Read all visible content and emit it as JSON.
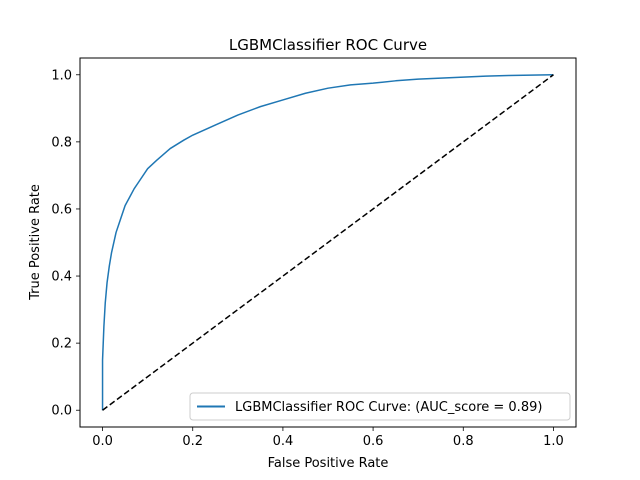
{
  "chart_data": {
    "type": "line",
    "title": "LGBMClassifier ROC Curve",
    "xlabel": "False Positive Rate",
    "ylabel": "True Positive Rate",
    "xlim": [
      -0.05,
      1.05
    ],
    "ylim": [
      -0.05,
      1.05
    ],
    "xticks": [
      0.0,
      0.2,
      0.4,
      0.6,
      0.8,
      1.0
    ],
    "yticks": [
      0.0,
      0.2,
      0.4,
      0.6,
      0.8,
      1.0
    ],
    "xtick_labels": [
      "0.0",
      "0.2",
      "0.4",
      "0.6",
      "0.8",
      "1.0"
    ],
    "ytick_labels": [
      "0.0",
      "0.2",
      "0.4",
      "0.6",
      "0.8",
      "1.0"
    ],
    "grid": false,
    "legend_position": "lower-right",
    "series": [
      {
        "name": "LGBMClassifier ROC Curve: (AUC_score = 0.89)",
        "color": "#1f77b4",
        "style": "solid",
        "x": [
          0.0,
          0.0,
          0.003,
          0.006,
          0.01,
          0.015,
          0.02,
          0.03,
          0.04,
          0.05,
          0.06,
          0.07,
          0.08,
          0.1,
          0.12,
          0.15,
          0.18,
          0.2,
          0.25,
          0.3,
          0.35,
          0.4,
          0.45,
          0.5,
          0.55,
          0.6,
          0.65,
          0.7,
          0.75,
          0.8,
          0.85,
          0.9,
          0.95,
          1.0
        ],
        "y": [
          0.0,
          0.15,
          0.25,
          0.32,
          0.38,
          0.43,
          0.47,
          0.53,
          0.57,
          0.61,
          0.635,
          0.66,
          0.68,
          0.72,
          0.745,
          0.78,
          0.805,
          0.82,
          0.85,
          0.88,
          0.905,
          0.925,
          0.945,
          0.96,
          0.97,
          0.975,
          0.982,
          0.987,
          0.99,
          0.993,
          0.996,
          0.998,
          0.999,
          1.0
        ]
      },
      {
        "color": "#000000",
        "style": "dashed",
        "x": [
          0.0,
          1.0
        ],
        "y": [
          0.0,
          1.0
        ]
      }
    ]
  }
}
